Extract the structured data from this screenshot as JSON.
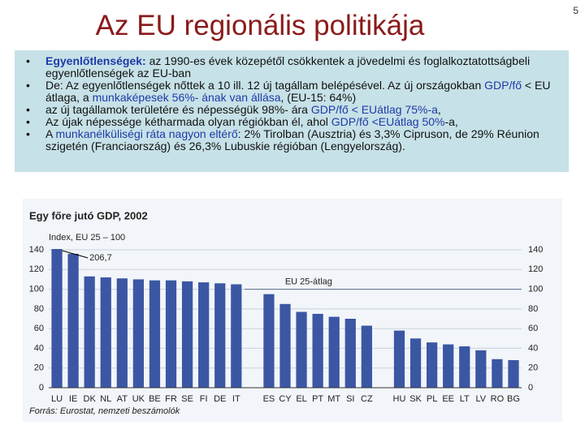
{
  "slide": {
    "title": "Az EU regionális politikája",
    "page_number": "5",
    "bullets": [
      [
        {
          "text": "Egyenlőtlenségek:",
          "style": "highlight-bold"
        },
        {
          "text": " az 1990-es évek közepétől  csökkentek a jövedelmi és foglalkoztatottságbeli  egyenlőtlenségek az EU-ban",
          "style": "plain"
        }
      ],
      [
        {
          "text": "De: Az egyenlőtlenségek nőttek a 10 ill. 12 új tagállam belépésével. Az új országokban ",
          "style": "plain"
        },
        {
          "text": "GDP/fő",
          "style": "highlight"
        },
        {
          "text": " <  EU átlaga,  a ",
          "style": "plain"
        },
        {
          "text": "munkaképesek 56%- ának van állása",
          "style": "highlight"
        },
        {
          "text": ",  (EU-15:  64%)",
          "style": "plain"
        }
      ],
      [
        {
          "text": "az új tagállamok területére és népességük 98%- ára ",
          "style": "plain"
        },
        {
          "text": "GDP/fő < EUátlag 75%-a",
          "style": "highlight"
        },
        {
          "text": ",",
          "style": "plain"
        }
      ],
      [
        {
          "text": "Az újak népessége kétharmada olyan régiókban él, ahol ",
          "style": "plain"
        },
        {
          "text": "GDP/fő <EUátlag 50%",
          "style": "highlight"
        },
        {
          "text": "-a,",
          "style": "plain"
        }
      ],
      [
        {
          "text": "A ",
          "style": "plain"
        },
        {
          "text": "munkanélküliségi ráta nagyon eltérő",
          "style": "highlight"
        },
        {
          "text": ": 2% Tirolban (Ausztria) és 3,3% Cipruson, de 29% Réunion szigetén (Franciaország) és 26,3% Lubuskie régióban (Lengyelország).",
          "style": "plain"
        }
      ]
    ]
  },
  "chart_data": {
    "type": "bar",
    "title": "Egy főre jutó GDP, 2002",
    "subtitle": "Index, EU 25 – 100",
    "source": "Forrás: Eurostat, nemzeti beszámolók",
    "categories": [
      "LU",
      "IE",
      "DK",
      "NL",
      "AT",
      "UK",
      "BE",
      "FR",
      "SE",
      "FI",
      "DE",
      "IT",
      null,
      "ES",
      "CY",
      "EL",
      "PT",
      "MT",
      "SI",
      "CZ",
      null,
      "HU",
      "SK",
      "PL",
      "EE",
      "LT",
      "LV",
      "RO",
      "BG"
    ],
    "values": [
      206.7,
      136,
      113,
      112,
      111,
      110,
      109,
      109,
      108,
      107,
      106,
      105,
      null,
      95,
      85,
      77,
      75,
      72,
      70,
      63,
      null,
      58,
      50,
      46,
      44,
      42,
      38,
      29,
      28
    ],
    "value_labels": [
      "206,7",
      null,
      null,
      null,
      null,
      null,
      null,
      null,
      null,
      null,
      null,
      null,
      null,
      null,
      null,
      null,
      null,
      null,
      null,
      null,
      null,
      null,
      null,
      null,
      null,
      null,
      null,
      null,
      null
    ],
    "color": "#3b57a3",
    "ylim": [
      0,
      140
    ],
    "yticks": [
      0,
      20,
      40,
      60,
      80,
      100,
      120,
      140
    ],
    "y2lim": [
      0,
      140
    ],
    "y2ticks": [
      0,
      20,
      40,
      60,
      80,
      100,
      120,
      140
    ],
    "reference_line": {
      "value": 100,
      "label": "EU 25-átlag"
    },
    "grid": true
  }
}
